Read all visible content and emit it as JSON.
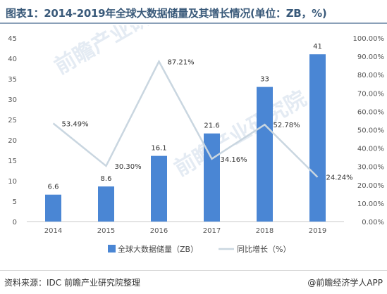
{
  "title": "图表1：2014-2019年全球大数据储量及其增长情况(单位：ZB，%)",
  "footer": {
    "source": "资料来源：IDC 前瞻产业研究院整理",
    "brand": "@前瞻经济学人APP"
  },
  "watermark": "前瞻产业研究院",
  "colors": {
    "bar": "#4a86d4",
    "line": "#c9d6e0",
    "title": "#3a5a7a"
  },
  "chart_data": {
    "type": "bar",
    "categories": [
      "2014",
      "2015",
      "2016",
      "2017",
      "2018",
      "2019"
    ],
    "series": [
      {
        "name": "全球大数据储量（ZB）",
        "type": "bar",
        "axis": "left",
        "values": [
          6.6,
          8.6,
          16.1,
          21.6,
          33,
          41
        ],
        "labels": [
          "6.6",
          "8.6",
          "16.1",
          "21.6",
          "33",
          "41"
        ]
      },
      {
        "name": "同比增长（%）",
        "type": "line",
        "axis": "right",
        "values": [
          53.49,
          30.3,
          87.21,
          34.16,
          52.78,
          24.24
        ],
        "labels": [
          "53.49%",
          "30.30%",
          "87.21%",
          "34.16%",
          "52.78%",
          "24.24%"
        ]
      }
    ],
    "y_left": {
      "ylim": [
        0,
        45
      ],
      "ticks": [
        "0",
        "5",
        "10",
        "15",
        "20",
        "25",
        "30",
        "35",
        "40",
        "45"
      ]
    },
    "y_right": {
      "ylim": [
        0,
        100
      ],
      "ticks": [
        "0.00%",
        "10.00%",
        "20.00%",
        "30.00%",
        "40.00%",
        "50.00%",
        "60.00%",
        "70.00%",
        "80.00%",
        "90.00%",
        "100.00%"
      ]
    },
    "grid": false,
    "legend": "bottom"
  }
}
